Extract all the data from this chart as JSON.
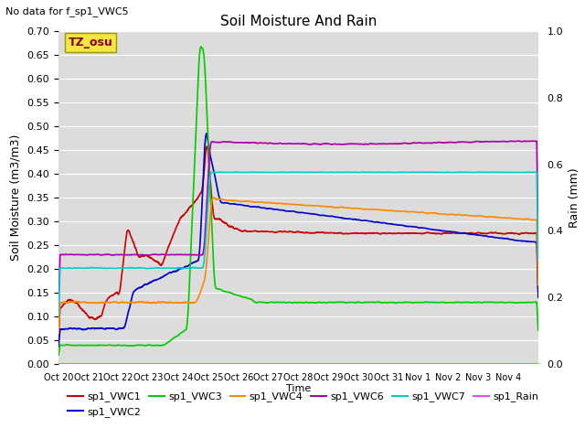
{
  "title": "Soil Moisture And Rain",
  "subtitle": "No data for f_sp1_VWC5",
  "xlabel": "Time",
  "ylabel_left": "Soil Moisture (m3/m3)",
  "ylabel_right": "Rain (mm)",
  "annotation": "TZ_osu",
  "ylim_left": [
    0.0,
    0.7
  ],
  "ylim_right": [
    0.0,
    1.0
  ],
  "bg_color": "#dcdcdc",
  "fig_color": "#ffffff",
  "x_ticks": [
    "Oct 20",
    "Oct 21",
    "Oct 22",
    "Oct 23",
    "Oct 24",
    "Oct 25",
    "Oct 26",
    "Oct 27",
    "Oct 28",
    "Oct 29",
    "Oct 30",
    "Oct 31",
    "Nov 1",
    "Nov 2",
    "Nov 3",
    "Nov 4"
  ],
  "series": {
    "sp1_VWC1": {
      "color": "#cc0000",
      "linewidth": 1.2
    },
    "sp1_VWC2": {
      "color": "#0000cc",
      "linewidth": 1.2
    },
    "sp1_VWC3": {
      "color": "#00cc00",
      "linewidth": 1.2
    },
    "sp1_VWC4": {
      "color": "#ff8800",
      "linewidth": 1.2
    },
    "sp1_VWC6": {
      "color": "#aa00aa",
      "linewidth": 1.2
    },
    "sp1_VWC7": {
      "color": "#00cccc",
      "linewidth": 1.2
    },
    "sp1_Rain": {
      "color": "#ff44ff",
      "linewidth": 1.0
    }
  }
}
